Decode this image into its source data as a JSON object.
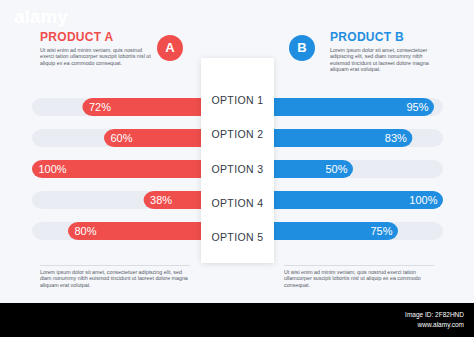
{
  "chart_data": [
    {
      "type": "bar",
      "orientation": "horizontal",
      "title": "PRODUCT A",
      "subtitle": "Ut wisi enim ad minim veniam, quis nostrud exerci tation ullamcorper suscipit lobortis nisl ut aliquip ex ea commodo consequat.",
      "annotations": [
        "A",
        "Lorem ipsum dolor sit amet, consectetuer adipiscing elit, sed diam nonummy nibh euismod tincidunt ut laoreet dolore magna aliquam erat volutpat."
      ],
      "categories": [
        "OPTION 1",
        "OPTION 2",
        "OPTION 3",
        "OPTION 4",
        "OPTION 5"
      ],
      "values": [
        72,
        60,
        100,
        38,
        80
      ],
      "value_labels": [
        "72%",
        "60%",
        "100%",
        "38%",
        "80%"
      ],
      "data_labels": true,
      "tick_labels": false,
      "xlim": [
        0,
        100
      ],
      "color": "#f04e4c"
    },
    {
      "type": "bar",
      "orientation": "horizontal",
      "title": "PRODUCT B",
      "subtitle": "Lorem ipsum dolor sit amet, consectetuer adipiscing elit, sed diam nonummy nibh euismod tincidunt ut laoreet dolore magna aliquam erat volutpat.",
      "annotations": [
        "B",
        "Ut wisi enim ad minim veniam, quis nostrud exerci tation ullamcorper suscipit lobortis nisl ut aliquip ex ea commodo consequat."
      ],
      "categories": [
        "OPTION 1",
        "OPTION 2",
        "OPTION 3",
        "OPTION 4",
        "OPTION 5"
      ],
      "values": [
        95,
        83,
        50,
        100,
        75
      ],
      "value_labels": [
        "95%",
        "83%",
        "50%",
        "100%",
        "75%"
      ],
      "data_labels": true,
      "tick_labels": false,
      "xlim": [
        0,
        100
      ],
      "color": "#1f8ee0"
    }
  ],
  "watermark": {
    "brand": "alamy",
    "image_id": "Image ID: 2F82HND",
    "url": "www.alamy.com"
  }
}
